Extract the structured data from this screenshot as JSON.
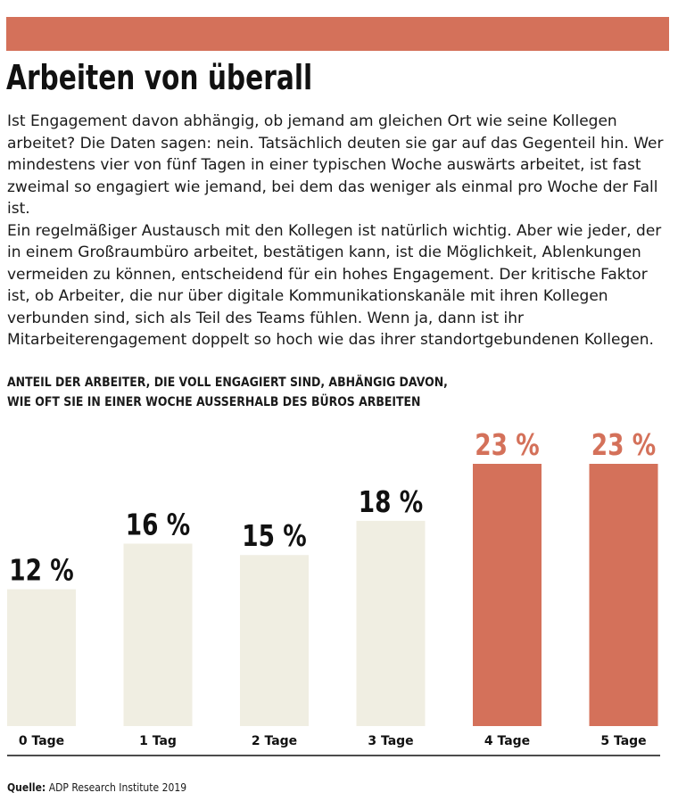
{
  "colors": {
    "accent": "#d4715a",
    "bar_default": "#f0eee2",
    "text": "#1a1a1a"
  },
  "title": "Arbeiten von überall",
  "paragraphs": [
    "Ist Engagement davon abhängig, ob jemand am gleichen Ort wie seine Kollegen arbeitet? Die Daten sagen: nein. Tatsächlich deuten sie gar auf das Gegenteil hin. Wer mindestens vier von fünf Tagen in einer typischen Woche auswärts arbeitet, ist fast zweimal so engagiert wie jemand, bei dem das weniger als einmal pro Woche der Fall ist.",
    "Ein regelmäßiger Austausch mit den Kollegen ist natürlich wichtig. Aber wie jeder, der in einem Großraumbüro arbeitet, bestätigen kann, ist die Möglichkeit, Ablenkungen vermeiden zu können, entscheidend für ein hohes Engagement. Der kritische Faktor ist, ob Arbeiter, die nur über digitale Kommunikationskanäle mit ihren Kollegen verbunden sind, sich als Teil des Teams fühlen. Wenn ja, dann ist ihr Mitarbeiterengagement doppelt so hoch wie das ihrer standortgebundenen Kollegen."
  ],
  "chart_data": {
    "type": "bar",
    "title_lines": [
      "ANTEIL DER ARBEITER, DIE VOLL ENGAGIERT SIND, ABHÄNGIG DAVON,",
      "WIE OFT SIE IN EINER WOCHE AUSSERHALB DES BÜROS ARBEITEN"
    ],
    "categories": [
      "0 Tage",
      "1 Tag",
      "2 Tage",
      "3 Tage",
      "4 Tage",
      "5 Tage"
    ],
    "values": [
      12,
      16,
      15,
      18,
      23,
      23
    ],
    "value_labels": [
      "12 %",
      "16 %",
      "15 %",
      "18 %",
      "23 %",
      "23 %"
    ],
    "highlighted": [
      false,
      false,
      false,
      false,
      true,
      true
    ],
    "unit": "%",
    "ylim": [
      0,
      23
    ],
    "grid": false,
    "legend": "none"
  },
  "source": {
    "label": "Quelle:",
    "text": "ADP Research Institute 2019"
  }
}
